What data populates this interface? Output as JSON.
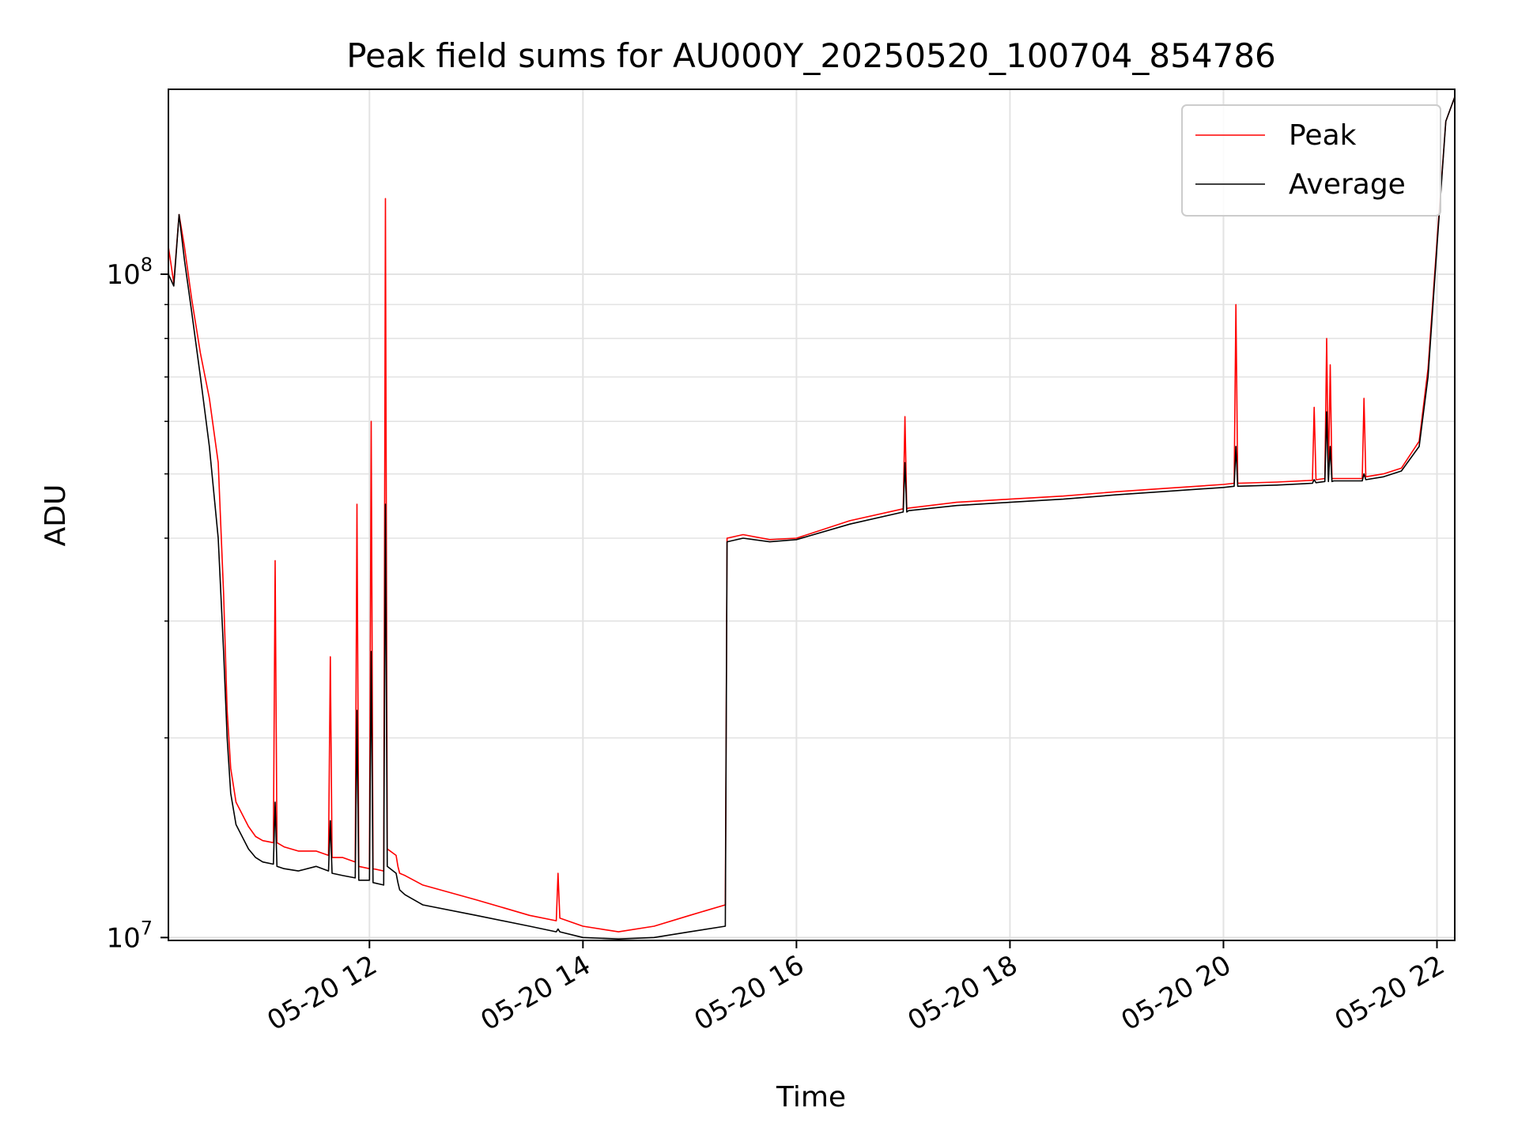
{
  "chart_data": {
    "type": "line",
    "title": "Peak field sums for AU000Y_20250520_100704_854786",
    "xlabel": "Time",
    "ylabel": "ADU",
    "yscale": "log",
    "ylim": [
      9900000,
      190000000
    ],
    "xlim": [
      "2025-05-20 10:07",
      "2025-05-20 22:10"
    ],
    "grid": true,
    "legend_position": "top-right",
    "x_ticks": [
      "05-20 12",
      "05-20 14",
      "05-20 16",
      "05-20 18",
      "05-20 20",
      "05-20 22"
    ],
    "x_tick_values": [
      "2025-05-20 12:00",
      "2025-05-20 14:00",
      "2025-05-20 16:00",
      "2025-05-20 18:00",
      "2025-05-20 20:00",
      "2025-05-20 22:00"
    ],
    "y_ticks": [
      {
        "base": "10",
        "exp": "7",
        "value": 10000000
      },
      {
        "base": "10",
        "exp": "8",
        "value": 100000000
      }
    ],
    "series": [
      {
        "name": "Peak",
        "color": "#ff0000",
        "x": [
          "2025-05-20 10:07",
          "2025-05-20 10:10",
          "2025-05-20 10:13",
          "2025-05-20 10:16",
          "2025-05-20 10:20",
          "2025-05-20 10:25",
          "2025-05-20 10:30",
          "2025-05-20 10:35",
          "2025-05-20 10:38",
          "2025-05-20 10:40",
          "2025-05-20 10:42",
          "2025-05-20 10:45",
          "2025-05-20 10:52",
          "2025-05-20 10:56",
          "2025-05-20 11:00",
          "2025-05-20 11:06",
          "2025-05-20 11:07",
          "2025-05-20 11:08",
          "2025-05-20 11:12",
          "2025-05-20 11:20",
          "2025-05-20 11:30",
          "2025-05-20 11:37",
          "2025-05-20 11:38",
          "2025-05-20 11:39",
          "2025-05-20 11:45",
          "2025-05-20 11:52",
          "2025-05-20 11:53",
          "2025-05-20 11:54",
          "2025-05-20 12:00",
          "2025-05-20 12:01",
          "2025-05-20 12:02",
          "2025-05-20 12:08",
          "2025-05-20 12:09",
          "2025-05-20 12:10",
          "2025-05-20 12:15",
          "2025-05-20 12:16",
          "2025-05-20 12:17",
          "2025-05-20 12:20",
          "2025-05-20 12:30",
          "2025-05-20 13:00",
          "2025-05-20 13:30",
          "2025-05-20 13:45",
          "2025-05-20 13:46",
          "2025-05-20 13:47",
          "2025-05-20 14:00",
          "2025-05-20 14:20",
          "2025-05-20 14:40",
          "2025-05-20 15:00",
          "2025-05-20 15:20",
          "2025-05-20 15:21",
          "2025-05-20 15:30",
          "2025-05-20 15:45",
          "2025-05-20 16:00",
          "2025-05-20 16:30",
          "2025-05-20 17:00",
          "2025-05-20 17:01",
          "2025-05-20 17:02",
          "2025-05-20 17:03",
          "2025-05-20 17:30",
          "2025-05-20 18:00",
          "2025-05-20 18:30",
          "2025-05-20 19:00",
          "2025-05-20 19:30",
          "2025-05-20 20:00",
          "2025-05-20 20:06",
          "2025-05-20 20:07",
          "2025-05-20 20:08",
          "2025-05-20 20:30",
          "2025-05-20 20:50",
          "2025-05-20 20:51",
          "2025-05-20 20:52",
          "2025-05-20 20:57",
          "2025-05-20 20:58",
          "2025-05-20 20:59",
          "2025-05-20 21:00",
          "2025-05-20 21:01",
          "2025-05-20 21:02",
          "2025-05-20 21:18",
          "2025-05-20 21:19",
          "2025-05-20 21:20",
          "2025-05-20 21:30",
          "2025-05-20 21:40",
          "2025-05-20 21:50",
          "2025-05-20 21:55",
          "2025-05-20 22:00",
          "2025-05-20 22:05",
          "2025-05-20 22:10"
        ],
        "y": [
          110000000,
          97000000,
          123000000,
          110000000,
          92000000,
          76000000,
          65000000,
          52000000,
          33000000,
          22000000,
          18000000,
          16000000,
          14700000,
          14200000,
          14000000,
          13900000,
          37000000,
          13900000,
          13700000,
          13500000,
          13500000,
          13300000,
          26500000,
          13200000,
          13200000,
          13000000,
          45000000,
          12800000,
          12700000,
          60000000,
          12700000,
          12600000,
          130000000,
          13600000,
          13300000,
          12800000,
          12500000,
          12400000,
          12000000,
          11400000,
          10800000,
          10600000,
          12500000,
          10700000,
          10400000,
          10200000,
          10400000,
          10800000,
          11200000,
          40000000,
          40500000,
          39800000,
          40000000,
          42500000,
          44300000,
          61000000,
          44300000,
          44400000,
          45300000,
          45800000,
          46300000,
          47000000,
          47600000,
          48200000,
          48400000,
          90000000,
          48400000,
          48600000,
          48900000,
          63000000,
          49000000,
          49200000,
          80000000,
          49200000,
          73000000,
          49200000,
          49200000,
          49200000,
          65000000,
          49500000,
          50000000,
          51000000,
          56000000,
          72000000,
          112000000,
          170000000,
          185000000
        ]
      },
      {
        "name": "Average",
        "color": "#000000",
        "x": [
          "2025-05-20 10:07",
          "2025-05-20 10:10",
          "2025-05-20 10:13",
          "2025-05-20 10:16",
          "2025-05-20 10:20",
          "2025-05-20 10:25",
          "2025-05-20 10:30",
          "2025-05-20 10:35",
          "2025-05-20 10:38",
          "2025-05-20 10:40",
          "2025-05-20 10:42",
          "2025-05-20 10:45",
          "2025-05-20 10:52",
          "2025-05-20 10:56",
          "2025-05-20 11:00",
          "2025-05-20 11:06",
          "2025-05-20 11:07",
          "2025-05-20 11:08",
          "2025-05-20 11:12",
          "2025-05-20 11:20",
          "2025-05-20 11:30",
          "2025-05-20 11:37",
          "2025-05-20 11:38",
          "2025-05-20 11:39",
          "2025-05-20 11:45",
          "2025-05-20 11:52",
          "2025-05-20 11:53",
          "2025-05-20 11:54",
          "2025-05-20 12:00",
          "2025-05-20 12:01",
          "2025-05-20 12:02",
          "2025-05-20 12:08",
          "2025-05-20 12:09",
          "2025-05-20 12:10",
          "2025-05-20 12:15",
          "2025-05-20 12:16",
          "2025-05-20 12:17",
          "2025-05-20 12:20",
          "2025-05-20 12:30",
          "2025-05-20 13:00",
          "2025-05-20 13:30",
          "2025-05-20 13:45",
          "2025-05-20 13:46",
          "2025-05-20 13:47",
          "2025-05-20 14:00",
          "2025-05-20 14:20",
          "2025-05-20 14:40",
          "2025-05-20 15:00",
          "2025-05-20 15:20",
          "2025-05-20 15:21",
          "2025-05-20 15:30",
          "2025-05-20 15:45",
          "2025-05-20 16:00",
          "2025-05-20 16:30",
          "2025-05-20 17:00",
          "2025-05-20 17:01",
          "2025-05-20 17:02",
          "2025-05-20 17:03",
          "2025-05-20 17:30",
          "2025-05-20 18:00",
          "2025-05-20 18:30",
          "2025-05-20 19:00",
          "2025-05-20 19:30",
          "2025-05-20 20:00",
          "2025-05-20 20:06",
          "2025-05-20 20:07",
          "2025-05-20 20:08",
          "2025-05-20 20:30",
          "2025-05-20 20:50",
          "2025-05-20 20:51",
          "2025-05-20 20:52",
          "2025-05-20 20:57",
          "2025-05-20 20:58",
          "2025-05-20 20:59",
          "2025-05-20 21:00",
          "2025-05-20 21:01",
          "2025-05-20 21:02",
          "2025-05-20 21:18",
          "2025-05-20 21:19",
          "2025-05-20 21:20",
          "2025-05-20 21:30",
          "2025-05-20 21:40",
          "2025-05-20 21:50",
          "2025-05-20 21:55",
          "2025-05-20 22:00",
          "2025-05-20 22:05",
          "2025-05-20 22:10"
        ],
        "y": [
          100000000,
          96000000,
          123000000,
          105000000,
          88000000,
          70000000,
          55000000,
          40000000,
          27000000,
          20000000,
          16500000,
          14800000,
          13600000,
          13200000,
          13000000,
          12900000,
          16000000,
          12800000,
          12700000,
          12600000,
          12800000,
          12600000,
          15000000,
          12500000,
          12400000,
          12300000,
          22000000,
          12200000,
          12200000,
          27000000,
          12100000,
          12000000,
          45000000,
          12800000,
          12500000,
          12100000,
          11800000,
          11600000,
          11200000,
          10800000,
          10400000,
          10200000,
          10300000,
          10200000,
          10000000,
          9950000,
          10000000,
          10200000,
          10400000,
          39500000,
          40000000,
          39500000,
          39800000,
          42000000,
          43800000,
          52000000,
          43800000,
          44000000,
          44800000,
          45300000,
          45800000,
          46500000,
          47100000,
          47700000,
          47900000,
          55000000,
          47900000,
          48100000,
          48400000,
          49000000,
          48500000,
          48700000,
          62000000,
          48700000,
          55000000,
          48700000,
          48800000,
          48800000,
          50000000,
          49000000,
          49500000,
          50500000,
          55000000,
          70000000,
          110000000,
          170000000,
          185000000
        ]
      }
    ]
  }
}
